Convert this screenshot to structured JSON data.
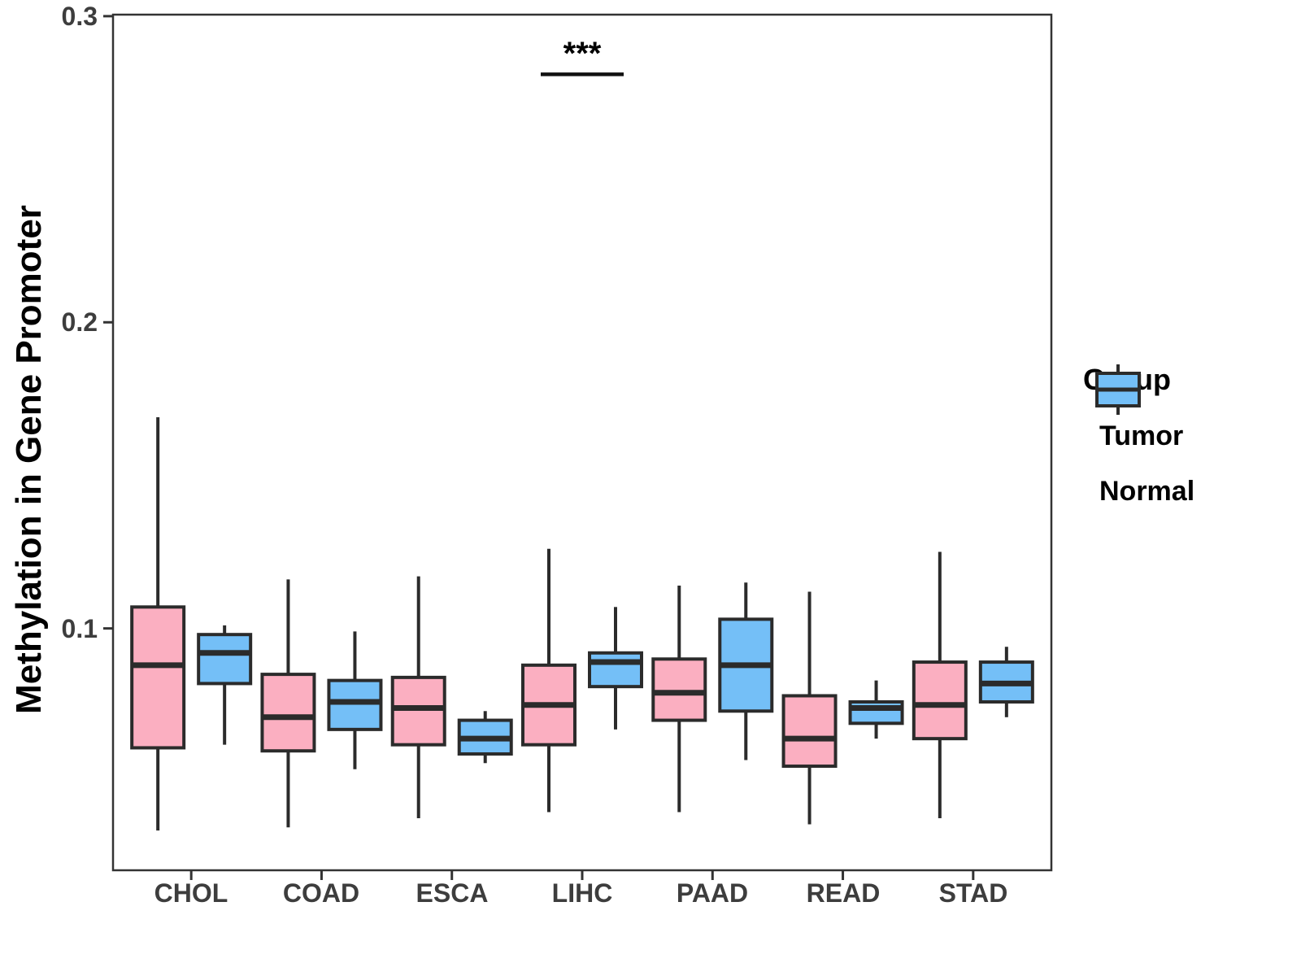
{
  "chart_data": {
    "type": "boxplot",
    "title": "",
    "xlabel": "",
    "ylabel": "Methylation in Gene Promoter",
    "categories": [
      "CHOL",
      "COAD",
      "ESCA",
      "LIHC",
      "PAAD",
      "READ",
      "STAD"
    ],
    "y_axis": {
      "ticks": [
        0.1,
        0.2,
        0.3
      ],
      "tick_labels_top_to_bottom": [
        "0.3",
        "0.2",
        "0.1"
      ],
      "range": [
        0.021,
        0.3005
      ],
      "grid": false
    },
    "legend": {
      "title": "Group",
      "position": "right",
      "entries": [
        {
          "label": "Tumor",
          "color": "#FBAFC1"
        },
        {
          "label": "Normal",
          "color": "#74BFF7"
        }
      ]
    },
    "colors": {
      "tumor": "#FBAFC1",
      "normal": "#74BFF7",
      "box_border": "#2B2B2B",
      "panel_border": "#333333",
      "axis_text": "#3d3d3d",
      "annotation": "#111111"
    },
    "series": [
      {
        "name": "Tumor",
        "color": "#FBAFC1",
        "boxes": [
          {
            "category": "CHOL",
            "low": 0.034,
            "q1": 0.061,
            "median": 0.088,
            "q3": 0.107,
            "high": 0.169
          },
          {
            "category": "COAD",
            "low": 0.035,
            "q1": 0.06,
            "median": 0.071,
            "q3": 0.085,
            "high": 0.116
          },
          {
            "category": "ESCA",
            "low": 0.038,
            "q1": 0.062,
            "median": 0.074,
            "q3": 0.084,
            "high": 0.117
          },
          {
            "category": "LIHC",
            "low": 0.04,
            "q1": 0.062,
            "median": 0.075,
            "q3": 0.088,
            "high": 0.126
          },
          {
            "category": "PAAD",
            "low": 0.04,
            "q1": 0.07,
            "median": 0.079,
            "q3": 0.09,
            "high": 0.114
          },
          {
            "category": "READ",
            "low": 0.036,
            "q1": 0.055,
            "median": 0.064,
            "q3": 0.078,
            "high": 0.112
          },
          {
            "category": "STAD",
            "low": 0.038,
            "q1": 0.064,
            "median": 0.075,
            "q3": 0.089,
            "high": 0.125
          }
        ]
      },
      {
        "name": "Normal",
        "color": "#74BFF7",
        "boxes": [
          {
            "category": "CHOL",
            "low": 0.062,
            "q1": 0.082,
            "median": 0.092,
            "q3": 0.098,
            "high": 0.101
          },
          {
            "category": "COAD",
            "low": 0.054,
            "q1": 0.067,
            "median": 0.076,
            "q3": 0.083,
            "high": 0.099
          },
          {
            "category": "ESCA",
            "low": 0.056,
            "q1": 0.059,
            "median": 0.064,
            "q3": 0.07,
            "high": 0.073
          },
          {
            "category": "LIHC",
            "low": 0.067,
            "q1": 0.081,
            "median": 0.089,
            "q3": 0.092,
            "high": 0.107
          },
          {
            "category": "PAAD",
            "low": 0.057,
            "q1": 0.073,
            "median": 0.088,
            "q3": 0.103,
            "high": 0.115
          },
          {
            "category": "READ",
            "low": 0.064,
            "q1": 0.069,
            "median": 0.074,
            "q3": 0.076,
            "high": 0.083
          },
          {
            "category": "STAD",
            "low": 0.071,
            "q1": 0.076,
            "median": 0.082,
            "q3": 0.089,
            "high": 0.094
          }
        ]
      }
    ],
    "annotation": {
      "label": "***",
      "category": "LIHC",
      "bar_y": 0.281
    }
  }
}
